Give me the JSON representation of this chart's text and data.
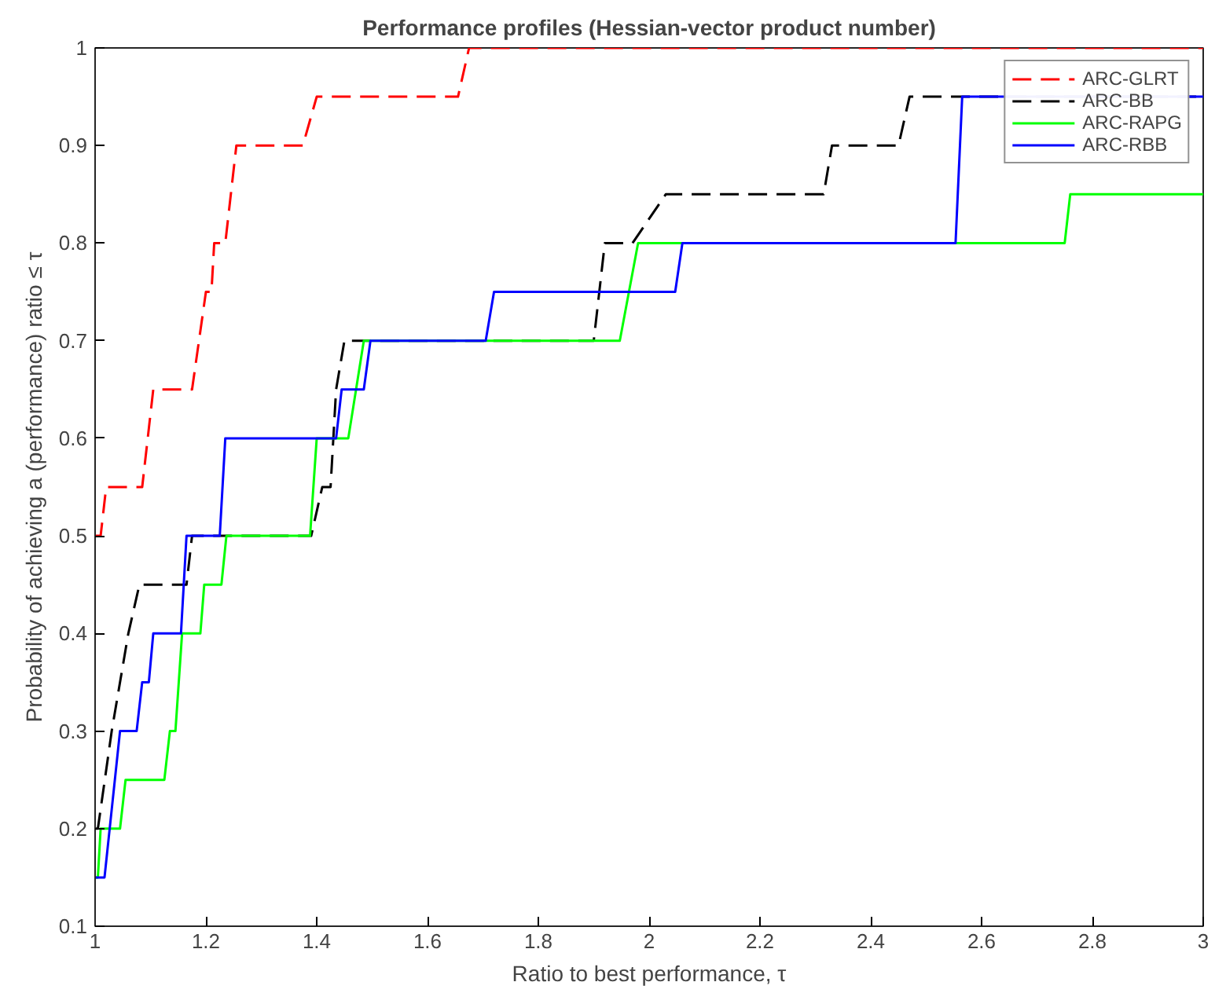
{
  "chart_data": {
    "type": "line",
    "title": "Performance profiles (Hessian-vector product number)",
    "xlabel": "Ratio to best performance, τ",
    "ylabel": "Probability of achieving a (performance) ratio ≤ τ",
    "xlim": [
      1,
      3
    ],
    "ylim": [
      0.1,
      1
    ],
    "xticks": [
      1,
      1.2,
      1.4,
      1.6,
      1.8,
      2,
      2.2,
      2.4,
      2.6,
      2.8,
      3
    ],
    "yticks": [
      0.1,
      0.2,
      0.3,
      0.4,
      0.5,
      0.6,
      0.7,
      0.8,
      0.9,
      1
    ],
    "legend": "top right",
    "grid": false,
    "series": [
      {
        "name": "ARC-GLRT",
        "color": "#ff0000",
        "line_style": "dashed",
        "x": [
          1,
          1.01,
          1.02,
          1.085,
          1.105,
          1.175,
          1.2,
          1.21,
          1.215,
          1.235,
          1.255,
          1.375,
          1.4,
          1.655,
          1.675,
          3
        ],
        "values": [
          0.5,
          0.5,
          0.55,
          0.55,
          0.65,
          0.65,
          0.75,
          0.75,
          0.8,
          0.8,
          0.9,
          0.9,
          0.95,
          0.95,
          1,
          1
        ]
      },
      {
        "name": "ARC-BB",
        "color": "#000000",
        "line_style": "dashed",
        "x": [
          1,
          1.005,
          1.03,
          1.06,
          1.08,
          1.165,
          1.175,
          1.39,
          1.41,
          1.425,
          1.435,
          1.45,
          1.9,
          1.92,
          1.97,
          2.03,
          2.315,
          2.33,
          2.45,
          2.47,
          3
        ],
        "values": [
          0.2,
          0.2,
          0.3,
          0.4,
          0.45,
          0.45,
          0.5,
          0.5,
          0.55,
          0.55,
          0.65,
          0.7,
          0.7,
          0.8,
          0.8,
          0.85,
          0.85,
          0.9,
          0.9,
          0.95,
          0.95
        ]
      },
      {
        "name": "ARC-RAPG",
        "color": "#00ff00",
        "line_style": "solid",
        "x": [
          1,
          1.005,
          1.01,
          1.045,
          1.055,
          1.125,
          1.135,
          1.145,
          1.157,
          1.19,
          1.197,
          1.228,
          1.237,
          1.388,
          1.4,
          1.457,
          1.485,
          1.947,
          1.98,
          2.75,
          2.76,
          3
        ],
        "values": [
          0.15,
          0.15,
          0.2,
          0.2,
          0.25,
          0.25,
          0.3,
          0.3,
          0.4,
          0.4,
          0.45,
          0.45,
          0.5,
          0.5,
          0.6,
          0.6,
          0.7,
          0.7,
          0.8,
          0.8,
          0.85,
          0.85
        ]
      },
      {
        "name": "ARC-RBB",
        "color": "#0000ff",
        "line_style": "solid",
        "x": [
          1,
          1.017,
          1.045,
          1.075,
          1.085,
          1.097,
          1.105,
          1.155,
          1.165,
          1.225,
          1.235,
          1.435,
          1.445,
          1.485,
          1.497,
          1.705,
          1.72,
          2.047,
          2.06,
          2.553,
          2.565,
          3
        ],
        "values": [
          0.15,
          0.15,
          0.3,
          0.3,
          0.35,
          0.35,
          0.4,
          0.4,
          0.5,
          0.5,
          0.6,
          0.6,
          0.65,
          0.65,
          0.7,
          0.7,
          0.75,
          0.75,
          0.8,
          0.8,
          0.95,
          0.95
        ]
      }
    ]
  }
}
